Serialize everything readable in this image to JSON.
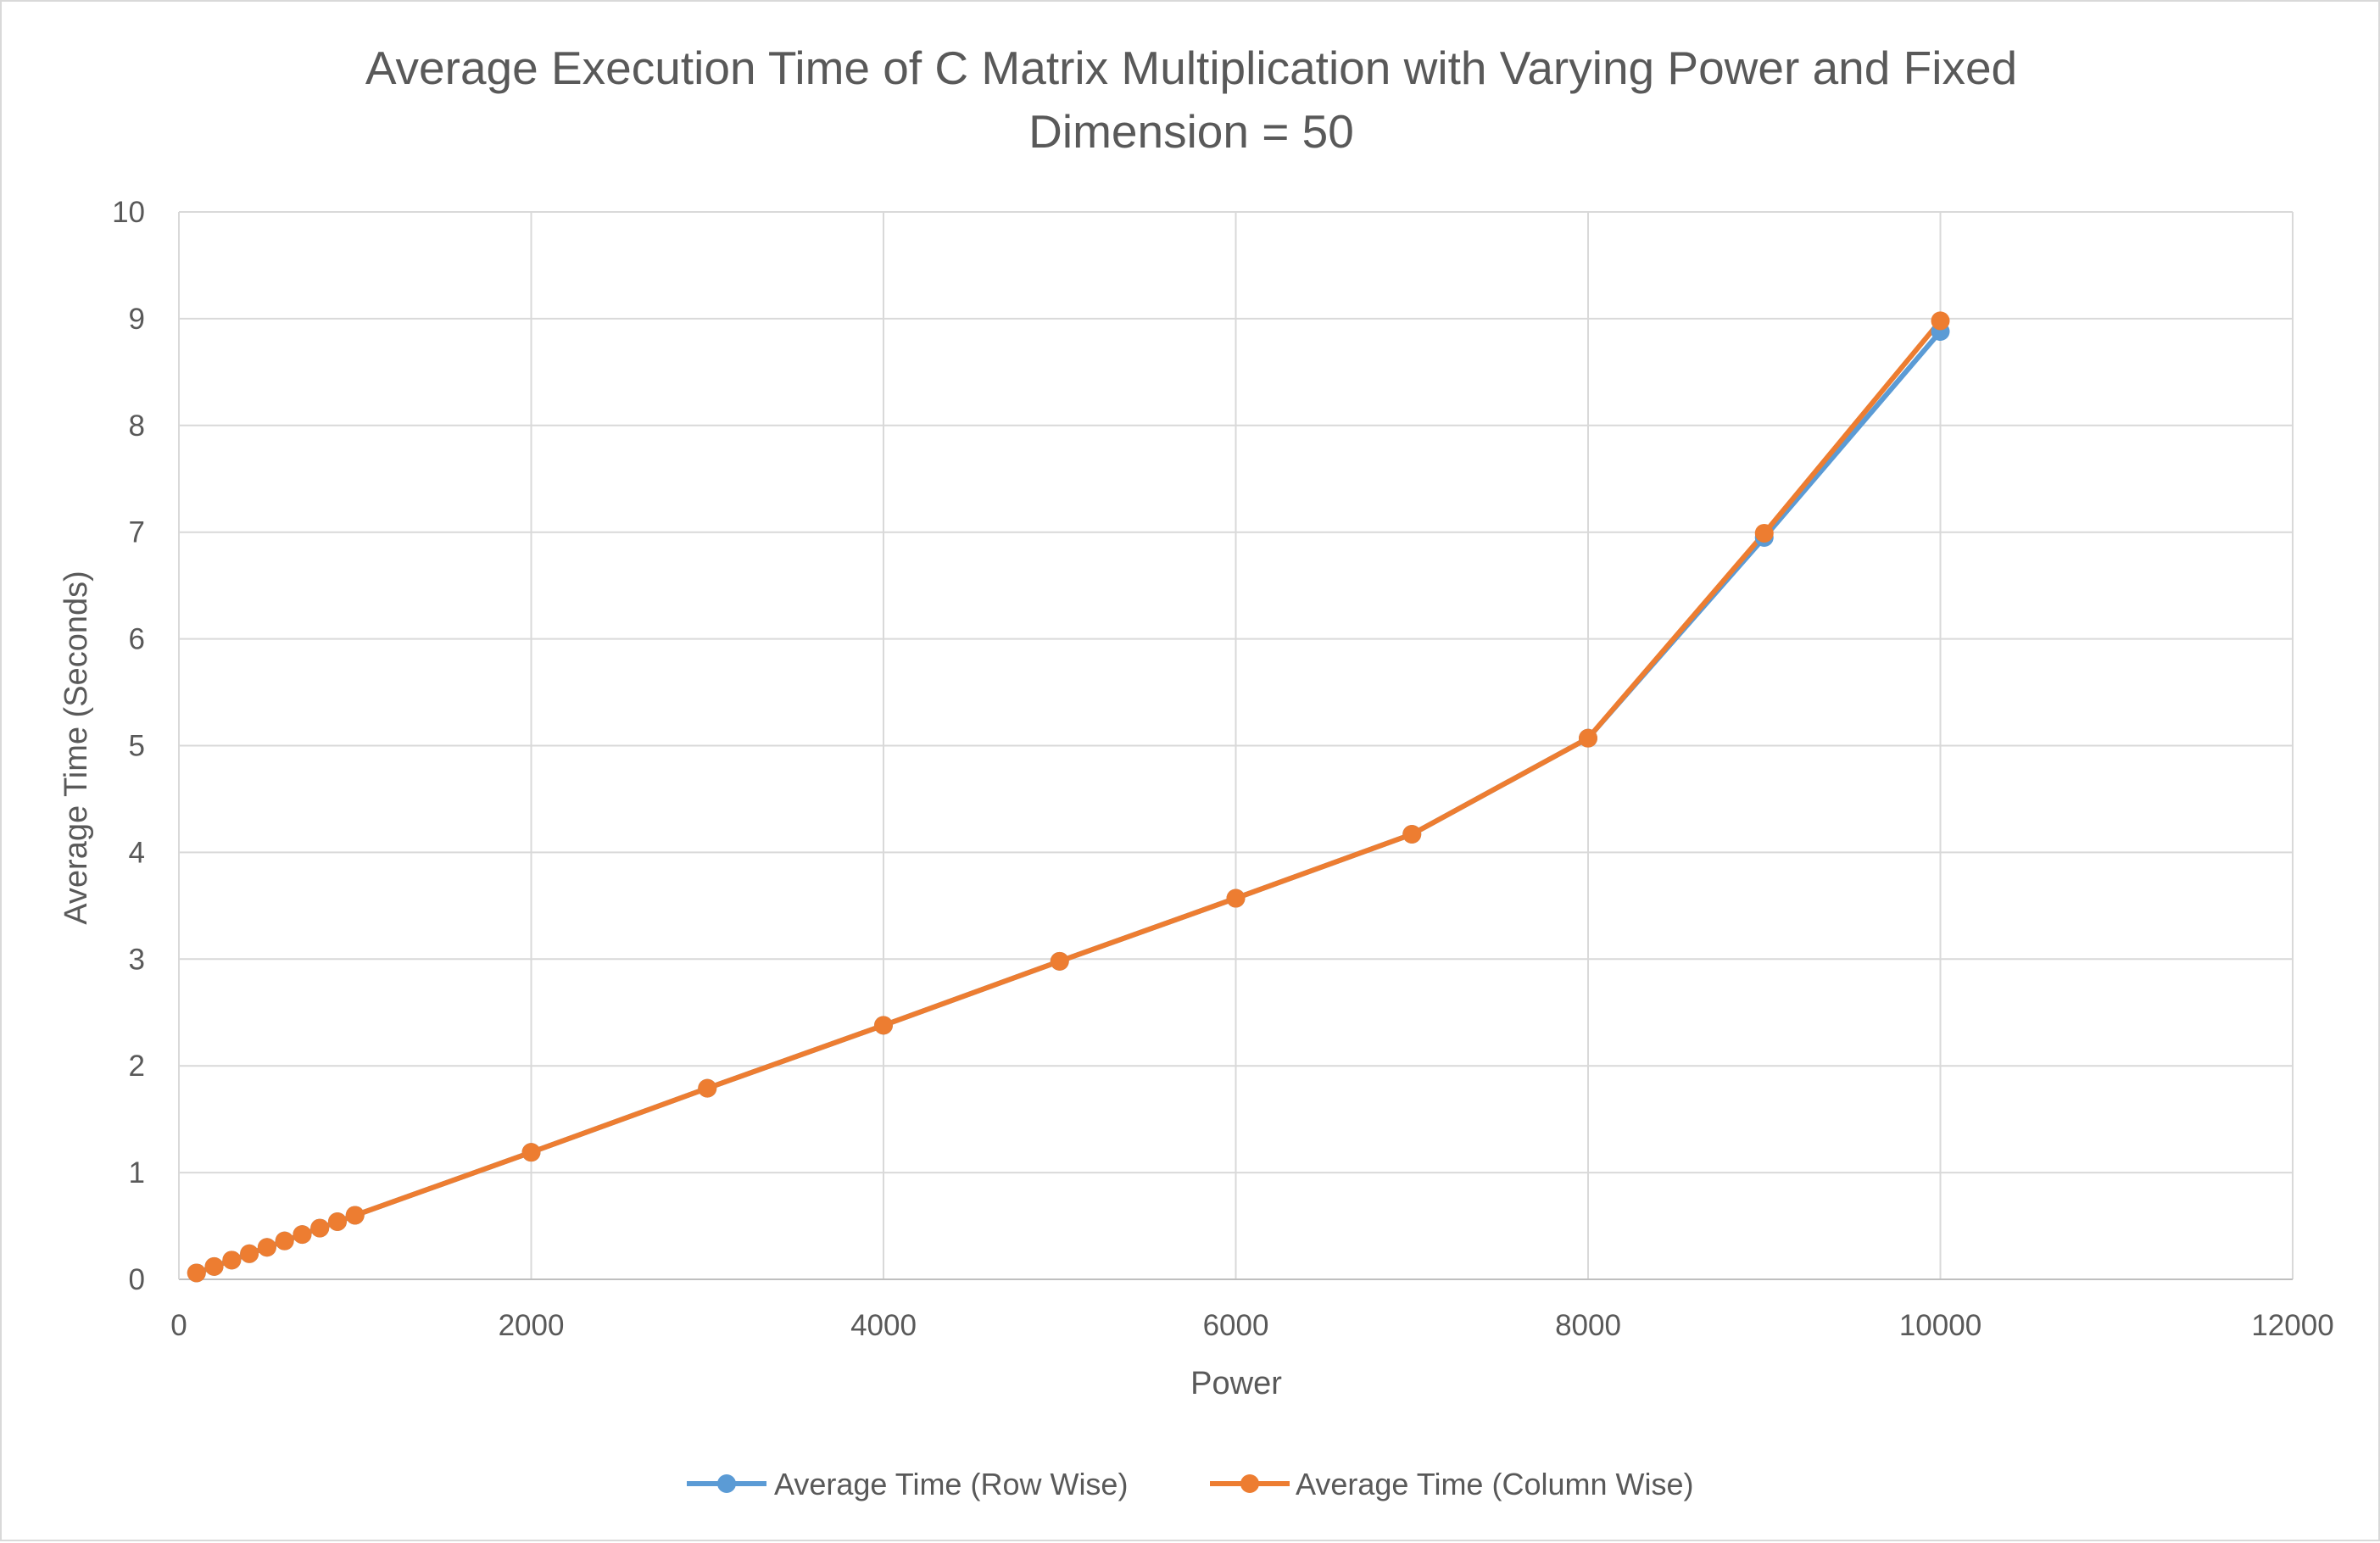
{
  "chart_data": {
    "type": "line",
    "title_lines": [
      "Average Execution Time of C Matrix Multiplication with Varying Power and Fixed",
      "Dimension = 50"
    ],
    "xlabel": "Power",
    "ylabel": "Average Time (Seconds)",
    "xlim": [
      0,
      12000
    ],
    "ylim": [
      0,
      10
    ],
    "xticks": [
      "0",
      "2000",
      "4000",
      "6000",
      "8000",
      "10000",
      "12000"
    ],
    "xtick_values": [
      0,
      2000,
      4000,
      6000,
      8000,
      10000,
      12000
    ],
    "yticks": [
      "0",
      "1",
      "2",
      "3",
      "4",
      "5",
      "6",
      "7",
      "8",
      "9",
      "10"
    ],
    "ytick_values": [
      0,
      1,
      2,
      3,
      4,
      5,
      6,
      7,
      8,
      9,
      10
    ],
    "grid": true,
    "legend_position": "bottom",
    "x": [
      100,
      200,
      300,
      400,
      500,
      600,
      700,
      800,
      900,
      1000,
      2000,
      3000,
      4000,
      5000,
      6000,
      7000,
      8000,
      9000,
      10000
    ],
    "series": [
      {
        "name": "Average Time (Row Wise)",
        "color": "#5b9bd5",
        "values": [
          0.06,
          0.12,
          0.18,
          0.24,
          0.3,
          0.36,
          0.42,
          0.48,
          0.54,
          0.6,
          1.19,
          1.79,
          2.38,
          2.98,
          3.57,
          4.17,
          5.07,
          6.95,
          8.88
        ]
      },
      {
        "name": "Average Time (Column Wise)",
        "color": "#ed7d31",
        "values": [
          0.06,
          0.12,
          0.18,
          0.24,
          0.3,
          0.36,
          0.42,
          0.48,
          0.54,
          0.6,
          1.19,
          1.79,
          2.38,
          2.98,
          3.57,
          4.17,
          5.07,
          6.99,
          8.98
        ]
      }
    ]
  }
}
